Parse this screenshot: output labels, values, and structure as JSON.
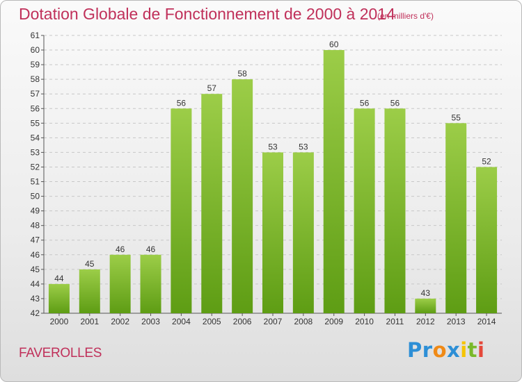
{
  "header": {
    "title": "Dotation Globale de Fonctionnement de 2000 à 2014",
    "unit": "(en milliers d'€)"
  },
  "footer": {
    "place": "FAVEROLLES",
    "logo_parts": [
      "Pr",
      "o",
      "x",
      "i",
      "t",
      "i"
    ]
  },
  "colors": {
    "text_accent": "#c0305a",
    "bar_light": "#9ccd48",
    "bar_dark": "#5e9d14",
    "grid": "#c7c7c7"
  },
  "chart_data": {
    "type": "bar",
    "categories": [
      "2000",
      "2001",
      "2002",
      "2003",
      "2004",
      "2005",
      "2006",
      "2007",
      "2008",
      "2009",
      "2010",
      "2011",
      "2012",
      "2013",
      "2014"
    ],
    "values": [
      44,
      45,
      46,
      46,
      56,
      57,
      58,
      53,
      53,
      60,
      56,
      56,
      43,
      55,
      52
    ],
    "title": "Dotation Globale de Fonctionnement de 2000 à 2014",
    "ylabel": "",
    "ylim": [
      42,
      61
    ],
    "yticks": [
      42,
      43,
      44,
      45,
      46,
      47,
      48,
      49,
      50,
      51,
      52,
      53,
      54,
      55,
      56,
      57,
      58,
      59,
      60,
      61
    ],
    "grid": true,
    "legend": "none"
  }
}
